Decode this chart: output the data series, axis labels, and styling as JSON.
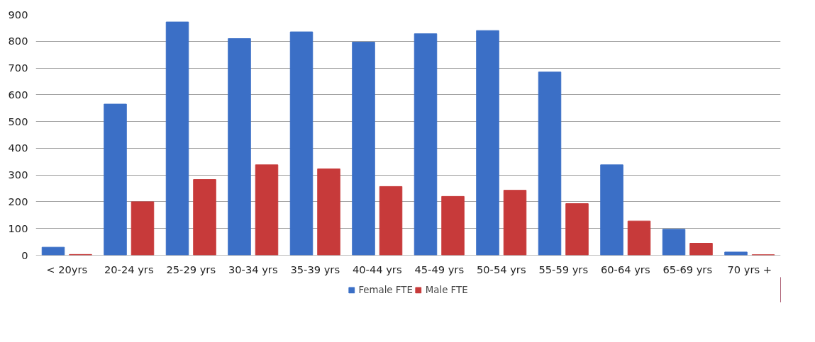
{
  "chart_data": {
    "type": "bar",
    "categories": [
      "< 20yrs",
      "20-24 yrs",
      "25-29 yrs",
      "30-34 yrs",
      "35-39 yrs",
      "40-44 yrs",
      "45-49 yrs",
      "50-54 yrs",
      "55-59 yrs",
      "60-64 yrs",
      "65-69 yrs",
      "70 yrs +"
    ],
    "series": [
      {
        "name": "Female FTE",
        "color": "#3b6fc6",
        "values": [
          30,
          565,
          872,
          810,
          835,
          797,
          828,
          840,
          685,
          338,
          97,
          12
        ]
      },
      {
        "name": "Male FTE",
        "color": "#c73a3a",
        "values": [
          3,
          200,
          283,
          338,
          323,
          257,
          220,
          243,
          193,
          128,
          45,
          2
        ]
      }
    ],
    "ylim": [
      0,
      900
    ],
    "yticks": [
      0,
      100,
      200,
      300,
      400,
      500,
      600,
      700,
      800,
      900
    ],
    "grid": "y",
    "legend": "bottom"
  }
}
